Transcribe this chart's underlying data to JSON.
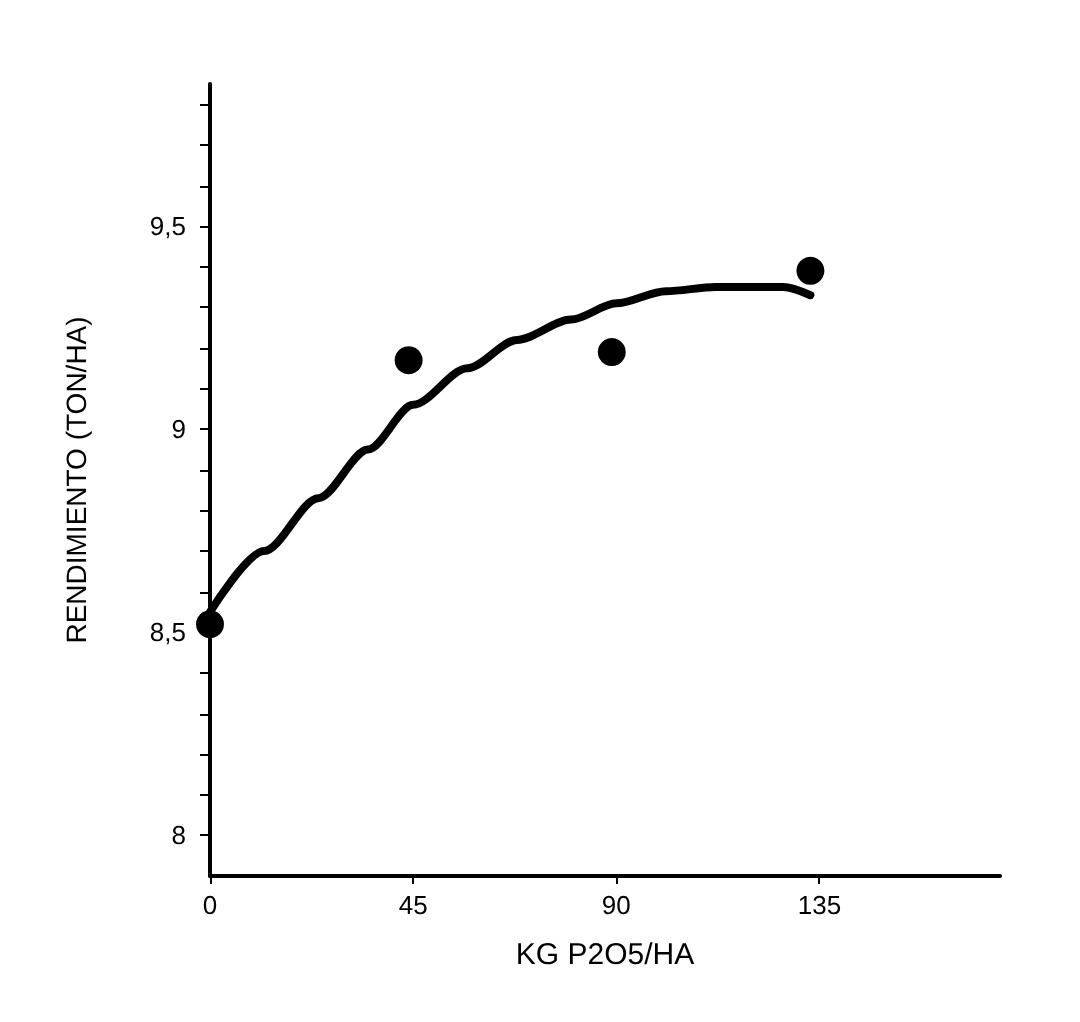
{
  "chart_data": {
    "type": "scatter",
    "xlabel": "KG P2O5/HA",
    "ylabel": "RENDIMIENTO (TON/HA)",
    "xlim": [
      0,
      175
    ],
    "xticks": [
      0,
      45,
      90,
      135
    ],
    "ylim": [
      7.9,
      9.85
    ],
    "yticks": [
      {
        "value": 8,
        "label": "8"
      },
      {
        "value": 8.1,
        "label": null
      },
      {
        "value": 8.2,
        "label": null
      },
      {
        "value": 8.3,
        "label": null
      },
      {
        "value": 8.4,
        "label": null
      },
      {
        "value": 8.5,
        "label": "8,5"
      },
      {
        "value": 8.6,
        "label": null
      },
      {
        "value": 8.7,
        "label": null
      },
      {
        "value": 8.8,
        "label": null
      },
      {
        "value": 8.9,
        "label": null
      },
      {
        "value": 9,
        "label": "9"
      },
      {
        "value": 9.1,
        "label": null
      },
      {
        "value": 9.2,
        "label": null
      },
      {
        "value": 9.3,
        "label": null
      },
      {
        "value": 9.4,
        "label": null
      },
      {
        "value": 9.5,
        "label": "9,5"
      },
      {
        "value": 9.6,
        "label": null
      },
      {
        "value": 9.7,
        "label": null
      },
      {
        "value": 9.8,
        "label": null
      }
    ],
    "grid": false,
    "series": [
      {
        "color": "#000000",
        "marker": "circle",
        "x": [
          0,
          44,
          89,
          133
        ],
        "values": [
          8.52,
          9.17,
          9.19,
          9.39
        ]
      },
      {
        "type": "line",
        "color": "#000000",
        "marker": "none",
        "line_style": "solid",
        "x": [
          0,
          12,
          24,
          35,
          45,
          57,
          68,
          80,
          90,
          101,
          112,
          120,
          127,
          133
        ],
        "values": [
          8.55,
          8.7,
          8.83,
          8.95,
          9.06,
          9.15,
          9.22,
          9.27,
          9.31,
          9.34,
          9.35,
          9.35,
          9.35,
          9.33
        ]
      }
    ]
  }
}
